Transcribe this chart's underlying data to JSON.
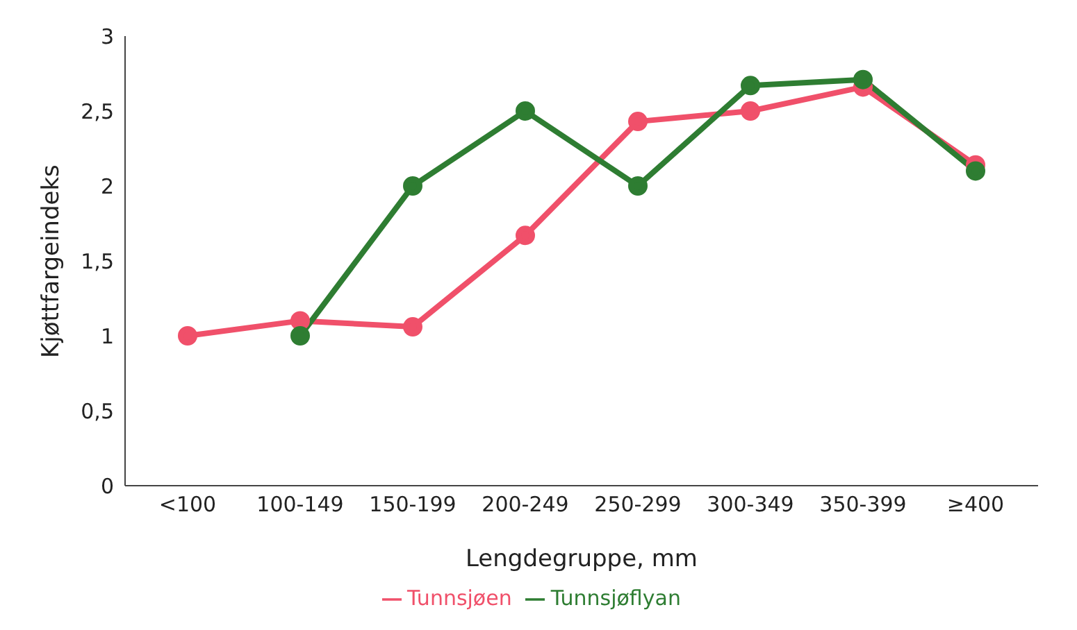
{
  "chart_data": {
    "type": "line",
    "xlabel": "Lengdegruppe, mm",
    "ylabel": "Kjøttfargeindeks",
    "categories": [
      "<100",
      "100-149",
      "150-199",
      "200-249",
      "250-299",
      "300-349",
      "350-399",
      "≥400"
    ],
    "series": [
      {
        "name": "Tunnsjøen",
        "color": "#f0506a",
        "values": [
          1.0,
          1.1,
          1.06,
          1.67,
          2.43,
          2.5,
          2.66,
          2.14
        ]
      },
      {
        "name": "Tunnsjøflyan",
        "color": "#2e7d32",
        "values": [
          null,
          1.0,
          2.0,
          2.5,
          2.0,
          2.67,
          2.71,
          2.1
        ]
      }
    ],
    "ylim": [
      0,
      3
    ],
    "yticks": [
      0,
      {
        "value": 0.5,
        "label": "0,5"
      },
      1,
      {
        "value": 1.5,
        "label": "1,5"
      },
      2,
      {
        "value": 2.5,
        "label": "2,5"
      },
      3
    ],
    "grid": false,
    "legend": "bottom",
    "marker": "circle",
    "line_style": "solid"
  }
}
